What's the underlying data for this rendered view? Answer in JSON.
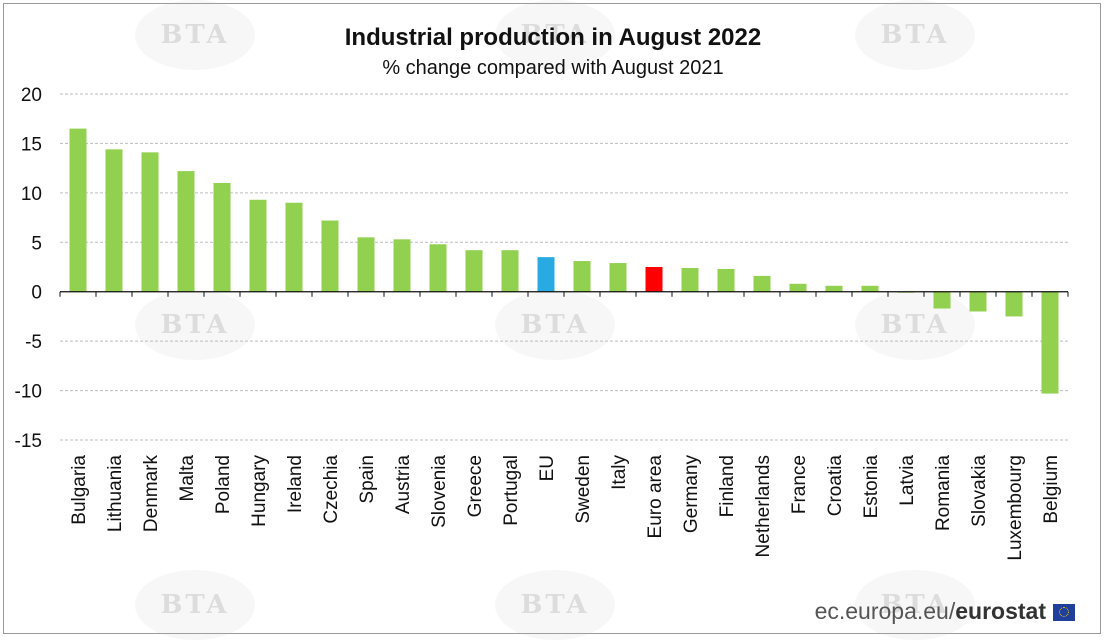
{
  "chart_data": {
    "type": "bar",
    "title": "Industrial production in August 2022",
    "subtitle": "% change compared with August 2021",
    "categories": [
      "Bulgaria",
      "Lithuania",
      "Denmark",
      "Malta",
      "Poland",
      "Hungary",
      "Ireland",
      "Czechia",
      "Spain",
      "Austria",
      "Slovenia",
      "Greece",
      "Portugal",
      "EU",
      "Sweden",
      "Italy",
      "Euro area",
      "Germany",
      "Finland",
      "Netherlands",
      "France",
      "Croatia",
      "Estonia",
      "Latvia",
      "Romania",
      "Slovakia",
      "Luxembourg",
      "Belgium"
    ],
    "values": [
      16.5,
      14.4,
      14.1,
      12.2,
      11.0,
      9.3,
      9.0,
      7.2,
      5.5,
      5.3,
      4.8,
      4.2,
      4.2,
      3.5,
      3.1,
      2.9,
      2.5,
      2.4,
      2.3,
      1.6,
      0.8,
      0.6,
      0.6,
      -0.1,
      -1.7,
      -2.0,
      -2.5,
      -10.3
    ],
    "colors": {
      "default": "#92d050",
      "EU": "#2aaae2",
      "Euro area": "#ff0000"
    },
    "yticks": [
      20,
      15,
      10,
      5,
      0,
      -5,
      -10,
      -15
    ],
    "ylim": [
      -15,
      20
    ],
    "grid": true
  },
  "source": {
    "prefix": "ec.europa.eu/",
    "brand": "eurostat"
  },
  "watermark_text": "BTA"
}
